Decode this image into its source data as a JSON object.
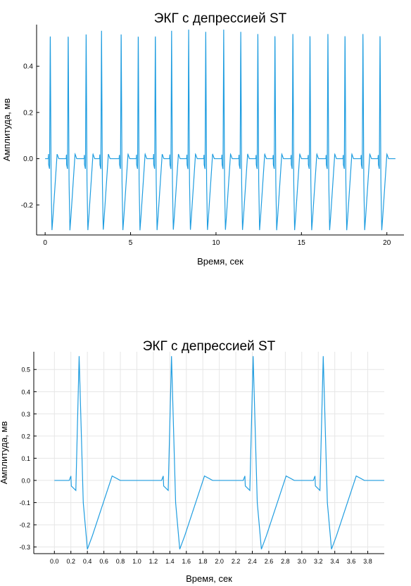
{
  "chart_data": [
    {
      "type": "line",
      "title": "ЭКГ с депрессией ST",
      "xlabel": "Время, сек",
      "ylabel": "Амплитуда, мв",
      "xlim": [
        -0.5,
        21
      ],
      "ylim": [
        -0.33,
        0.58
      ],
      "xticks": [
        0,
        5,
        10,
        15,
        20
      ],
      "xtick_labels": [
        "0",
        "5",
        "10",
        "15",
        "20"
      ],
      "yticks": [
        -0.2,
        0.0,
        0.2,
        0.4
      ],
      "ytick_labels": [
        "-0.2",
        "0.0",
        "0.2",
        "0.4"
      ],
      "grid": false,
      "legend": "none",
      "color": "#1f9de0",
      "series": [
        {
          "name": "",
          "beat_r_peak_times": [
            0.3,
            1.35,
            2.4,
            3.3,
            4.45,
            5.45,
            6.45,
            7.4,
            8.4,
            9.4,
            10.45,
            11.45,
            12.45,
            13.45,
            14.5,
            15.5,
            16.55,
            17.55,
            18.6,
            19.6
          ],
          "x_end": 20.5,
          "r_peak": 0.56,
          "s_trough": -0.31,
          "t_wave": 0.02,
          "baseline": 0.0
        }
      ]
    },
    {
      "type": "line",
      "title": "ЭКГ с депрессией ST",
      "xlabel": "Время, сек",
      "ylabel": "Амплитуда, мв",
      "xlim": [
        -0.25,
        4.0
      ],
      "ylim": [
        -0.33,
        0.58
      ],
      "xticks": [
        0.0,
        0.2,
        0.4,
        0.6,
        0.8,
        1.0,
        1.2,
        1.4,
        1.6,
        1.8,
        2.0,
        2.2,
        2.4,
        2.6,
        2.8,
        3.0,
        3.2,
        3.4,
        3.6,
        3.8
      ],
      "xtick_labels": [
        "0.0",
        "0.2",
        "0.4",
        "0.6",
        "0.8",
        "1.0",
        "1.2",
        "1.4",
        "1.6",
        "1.8",
        "2.0",
        "2.2",
        "2.4",
        "2.6",
        "2.8",
        "3.0",
        "3.2",
        "3.4",
        "3.6",
        "3.8"
      ],
      "yticks": [
        -0.3,
        -0.2,
        -0.1,
        0.0,
        0.1,
        0.2,
        0.3,
        0.4,
        0.5
      ],
      "ytick_labels": [
        "-0.3",
        "-0.2",
        "-0.1",
        "0.0",
        "0.1",
        "0.2",
        "0.3",
        "0.4",
        "0.5"
      ],
      "grid": true,
      "legend": "none",
      "color": "#1f9de0",
      "series": [
        {
          "name": "",
          "beat_r_peak_times": [
            0.3,
            1.42,
            2.41,
            3.26
          ],
          "x_start": 0.0,
          "x_end": 4.0,
          "r_peak": 0.56,
          "s_trough": -0.31,
          "t_wave": 0.02,
          "baseline": 0.0
        }
      ]
    }
  ]
}
